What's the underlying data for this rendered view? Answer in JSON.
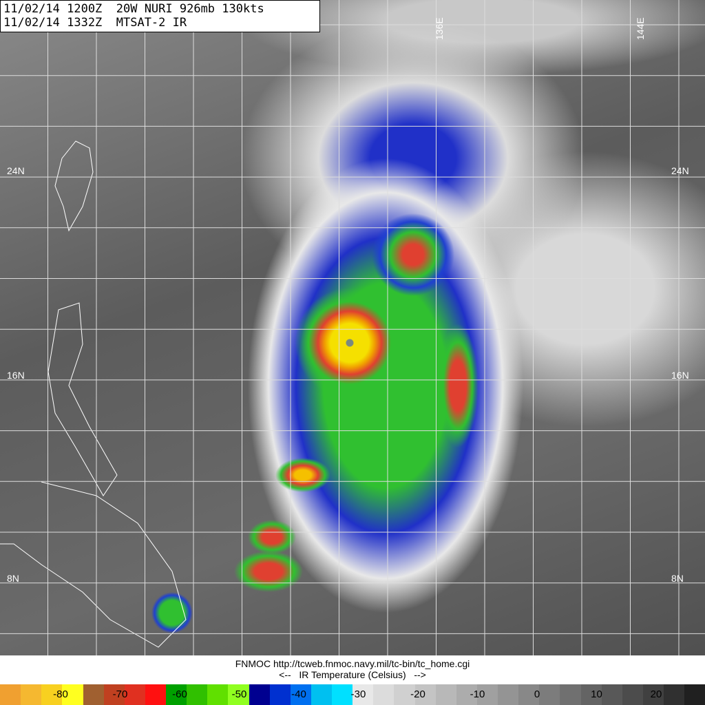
{
  "header": {
    "line1": "11/02/14 1200Z  20W NURI 926mb 130kts",
    "line2": "11/02/14 1332Z  MTSAT-2 IR"
  },
  "lat_labels": [
    "24N",
    "16N",
    "8N"
  ],
  "lon_labels": [
    "136E",
    "144E"
  ],
  "footer": {
    "credit": "FNMOC http://tcweb.fnmoc.navy.mil/tc-bin/tc_home.cgi",
    "legend_title": "<--   IR Temperature (Celsius)   -->"
  },
  "colorbar": {
    "ticks": [
      "-80",
      "-70",
      "-60",
      "-50",
      "-40",
      "-30",
      "-20",
      "-10",
      "0",
      "10",
      "20"
    ],
    "colors": [
      "#f0a030",
      "#f5b830",
      "#f8d020",
      "#ffff20",
      "#a06030",
      "#c04020",
      "#e03020",
      "#ff1010",
      "#00a000",
      "#30c000",
      "#60e000",
      "#90ff20",
      "#000090",
      "#0030d0",
      "#0070f0",
      "#00c0f0",
      "#00e0ff",
      "#e8e8e8",
      "#dcdcdc",
      "#d0d0d0",
      "#c4c4c4",
      "#b8b8b8",
      "#acacac",
      "#a0a0a0",
      "#949494",
      "#888888",
      "#7c7c7c",
      "#707070",
      "#646464",
      "#585858",
      "#4c4c4c",
      "#404040",
      "#303030",
      "#202020"
    ]
  }
}
